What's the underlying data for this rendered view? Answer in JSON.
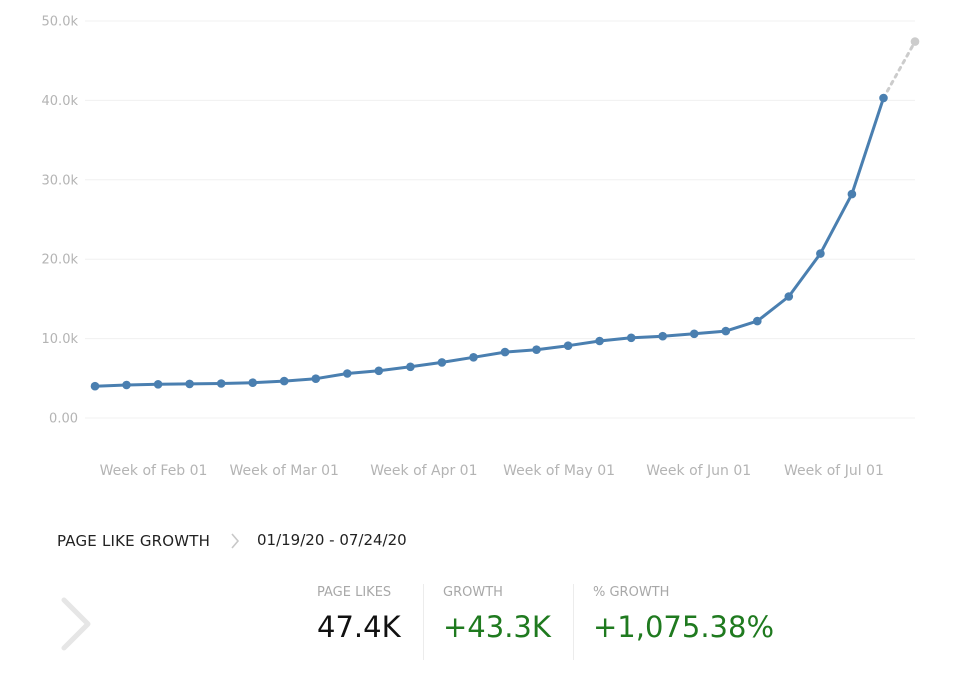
{
  "chart_data": {
    "type": "line",
    "ylim": [
      0,
      50000
    ],
    "yticks": [
      {
        "value": 0,
        "label": "0.00"
      },
      {
        "value": 10000,
        "label": "10.0k"
      },
      {
        "value": 20000,
        "label": "20.0k"
      },
      {
        "value": 30000,
        "label": "30.0k"
      },
      {
        "value": 40000,
        "label": "40.0k"
      },
      {
        "value": 50000,
        "label": "50.0k"
      }
    ],
    "xticks": [
      {
        "date": "2020-02-01",
        "label": "Week of Feb 01"
      },
      {
        "date": "2020-03-01",
        "label": "Week of Mar 01"
      },
      {
        "date": "2020-04-01",
        "label": "Week of Apr 01"
      },
      {
        "date": "2020-05-01",
        "label": "Week of May 01"
      },
      {
        "date": "2020-06-01",
        "label": "Week of Jun 01"
      },
      {
        "date": "2020-07-01",
        "label": "Week of Jul 01"
      }
    ],
    "grid": true,
    "series": [
      {
        "color": "#4a7fb0",
        "x": [
          "2020-01-19",
          "2020-01-26",
          "2020-02-02",
          "2020-02-09",
          "2020-02-16",
          "2020-02-23",
          "2020-03-01",
          "2020-03-08",
          "2020-03-15",
          "2020-03-22",
          "2020-03-29",
          "2020-04-05",
          "2020-04-12",
          "2020-04-19",
          "2020-04-26",
          "2020-05-03",
          "2020-05-10",
          "2020-05-17",
          "2020-05-24",
          "2020-05-31",
          "2020-06-07",
          "2020-06-14",
          "2020-06-21",
          "2020-06-28",
          "2020-07-05",
          "2020-07-12"
        ],
        "y": [
          4000,
          4150,
          4250,
          4300,
          4350,
          4450,
          4650,
          4950,
          5600,
          5950,
          6450,
          7000,
          7650,
          8300,
          8600,
          9100,
          9700,
          10100,
          10300,
          10600,
          10950,
          12200,
          15300,
          20700,
          28200,
          40300
        ]
      },
      {
        "color": "#cccccc",
        "style": "dashed",
        "x": [
          "2020-07-12",
          "2020-07-19"
        ],
        "y": [
          40300,
          47400
        ]
      }
    ]
  },
  "summary": {
    "title": "PAGE LIKE GROWTH",
    "date_range": "01/19/20 - 07/24/20"
  },
  "stats": [
    {
      "label": "PAGE LIKES",
      "value": "47.4K",
      "color": "#111111"
    },
    {
      "label": "GROWTH",
      "value": "+43.3K",
      "color": "#1f7a1f"
    },
    {
      "label": "% GROWTH",
      "value": "+1,075.38%",
      "color": "#1f7a1f"
    }
  ]
}
